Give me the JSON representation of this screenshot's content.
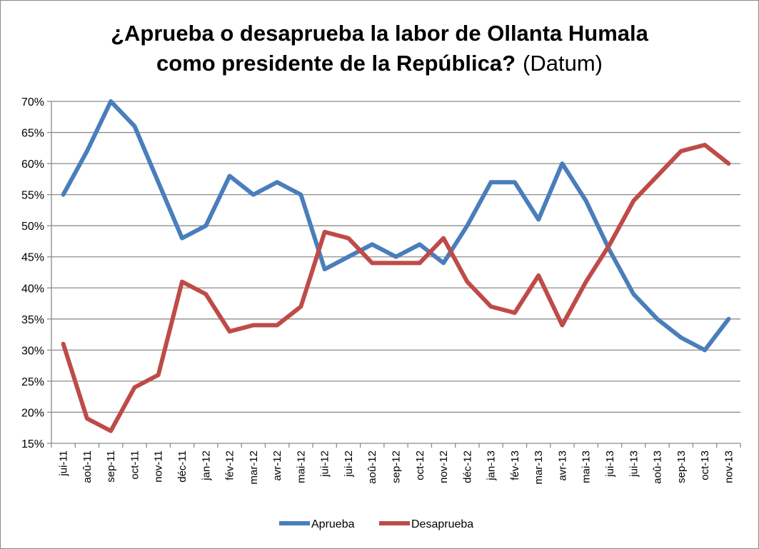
{
  "chart_data": {
    "type": "line",
    "title_line1": "¿Aprueba o desaprueba la labor de Ollanta Humala",
    "title_line2": "como presidente de la República?",
    "source": "(Datum)",
    "xlabel": "",
    "ylabel": "",
    "ylim": [
      15,
      70
    ],
    "y_ticks": [
      "15%",
      "20%",
      "25%",
      "30%",
      "35%",
      "40%",
      "45%",
      "50%",
      "55%",
      "60%",
      "65%",
      "70%"
    ],
    "grid": true,
    "legend_position": "bottom",
    "categories": [
      "jui-11",
      "aoû-11",
      "sep-11",
      "oct-11",
      "nov-11",
      "déc-11",
      "jan-12",
      "fév-12",
      "mar-12",
      "avr-12",
      "mai-12",
      "jui-12",
      "jui-12",
      "aoû-12",
      "sep-12",
      "oct-12",
      "nov-12",
      "déc-12",
      "jan-13",
      "fév-13",
      "mar-13",
      "avr-13",
      "mai-13",
      "jui-13",
      "jui-13",
      "aoû-13",
      "sep-13",
      "oct-13",
      "nov-13"
    ],
    "series": [
      {
        "name": "Aprueba",
        "color": "#4a7ebb",
        "values": [
          55,
          62,
          70,
          66,
          57,
          48,
          50,
          58,
          55,
          57,
          55,
          43,
          45,
          47,
          45,
          47,
          44,
          50,
          57,
          57,
          51,
          60,
          54,
          46,
          39,
          35,
          32,
          30,
          35
        ]
      },
      {
        "name": "Desaprueba",
        "color": "#be4b48",
        "values": [
          31,
          19,
          17,
          24,
          26,
          41,
          39,
          33,
          34,
          34,
          37,
          49,
          48,
          44,
          44,
          44,
          48,
          41,
          37,
          36,
          42,
          34,
          41,
          47,
          54,
          58,
          62,
          63,
          60
        ]
      }
    ]
  }
}
